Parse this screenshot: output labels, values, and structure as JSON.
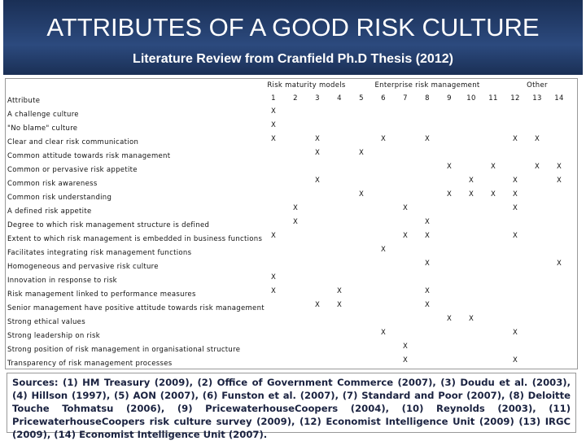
{
  "header": {
    "title": "ATTRIBUTES OF A GOOD RISK CULTURE",
    "subtitle": "Literature Review from Cranfield Ph.D Thesis (2012)"
  },
  "table": {
    "groups": [
      {
        "label": "Risk maturity models",
        "from": 1,
        "to": 4
      },
      {
        "label": "Enterprise risk management",
        "from": 5,
        "to": 11
      },
      {
        "label": "Other",
        "from": 12,
        "to": 14
      }
    ],
    "attribute_header": "Attribute",
    "columns": [
      "1",
      "2",
      "3",
      "4",
      "5",
      "6",
      "7",
      "8",
      "9",
      "10",
      "11",
      "12",
      "13",
      "14"
    ],
    "rows": [
      {
        "attribute": "A challenge culture",
        "cells": [
          "X",
          null,
          null,
          null,
          null,
          null,
          null,
          null,
          null,
          null,
          null,
          null,
          null,
          null
        ]
      },
      {
        "attribute": "\"No blame\" culture",
        "cells": [
          "X",
          null,
          null,
          null,
          null,
          null,
          null,
          null,
          null,
          null,
          null,
          null,
          null,
          null
        ]
      },
      {
        "attribute": "Clear and clear risk communication",
        "cells": [
          "X",
          null,
          "X",
          null,
          null,
          "X",
          null,
          "X",
          null,
          null,
          null,
          "X",
          "X",
          null
        ]
      },
      {
        "attribute": "Common attitude towards risk management",
        "cells": [
          null,
          null,
          "X",
          null,
          "X",
          null,
          null,
          null,
          null,
          null,
          null,
          null,
          null,
          null
        ]
      },
      {
        "attribute": "Common or pervasive risk appetite",
        "cells": [
          null,
          null,
          null,
          null,
          null,
          null,
          null,
          null,
          "X",
          null,
          "X",
          null,
          "X",
          "X"
        ]
      },
      {
        "attribute": "Common risk awareness",
        "cells": [
          null,
          null,
          "X",
          null,
          null,
          null,
          null,
          null,
          null,
          "X",
          null,
          "X",
          null,
          "X"
        ]
      },
      {
        "attribute": "Common risk understanding",
        "cells": [
          null,
          null,
          null,
          null,
          "X",
          null,
          null,
          null,
          "X",
          "X",
          "X",
          "X",
          null,
          null
        ]
      },
      {
        "attribute": "A defined risk appetite",
        "cells": [
          null,
          "X",
          null,
          null,
          null,
          null,
          "X",
          null,
          null,
          null,
          null,
          "X",
          null,
          null
        ]
      },
      {
        "attribute": "Degree to which risk management structure is defined",
        "cells": [
          null,
          "X",
          null,
          null,
          null,
          null,
          null,
          "X",
          null,
          null,
          null,
          null,
          null,
          null
        ]
      },
      {
        "attribute": "Extent to which risk management is embedded in business functions",
        "cells": [
          "X",
          null,
          null,
          null,
          null,
          null,
          "X",
          "X",
          null,
          null,
          null,
          "X",
          null,
          null
        ]
      },
      {
        "attribute": "Facilitates integrating risk management functions",
        "cells": [
          null,
          null,
          null,
          null,
          null,
          "X",
          null,
          null,
          null,
          null,
          null,
          null,
          null,
          null
        ]
      },
      {
        "attribute": "Homogeneous and pervasive risk culture",
        "cells": [
          null,
          null,
          null,
          null,
          null,
          null,
          null,
          "X",
          null,
          null,
          null,
          null,
          null,
          "X"
        ]
      },
      {
        "attribute": "Innovation in response to risk",
        "cells": [
          "X",
          null,
          null,
          null,
          null,
          null,
          null,
          null,
          null,
          null,
          null,
          null,
          null,
          null
        ]
      },
      {
        "attribute": "Risk management linked to performance measures",
        "cells": [
          "X",
          null,
          null,
          "X",
          null,
          null,
          null,
          "X",
          null,
          null,
          null,
          null,
          null,
          null
        ]
      },
      {
        "attribute": "Senior management have positive attitude towards risk management",
        "cells": [
          null,
          null,
          "X",
          "X",
          null,
          null,
          null,
          "X",
          null,
          null,
          null,
          null,
          null,
          null
        ]
      },
      {
        "attribute": "Strong ethical values",
        "cells": [
          null,
          null,
          null,
          null,
          null,
          null,
          null,
          null,
          "X",
          "X",
          null,
          null,
          null,
          null
        ]
      },
      {
        "attribute": "Strong leadership on risk",
        "cells": [
          null,
          null,
          null,
          null,
          null,
          "X",
          null,
          null,
          null,
          null,
          null,
          "X",
          null,
          null
        ]
      },
      {
        "attribute": "Strong position of risk management in organisational structure",
        "cells": [
          null,
          null,
          null,
          null,
          null,
          null,
          "X",
          null,
          null,
          null,
          null,
          null,
          null,
          null
        ]
      },
      {
        "attribute": "Transparency of risk management processes",
        "cells": [
          null,
          null,
          null,
          null,
          null,
          null,
          "X",
          null,
          null,
          null,
          null,
          "X",
          null,
          null
        ]
      }
    ]
  },
  "sources": "Sources: (1) HM Treasury (2009), (2) Office of Government Commerce (2007), (3) Doudu et al. (2003), (4) Hillson (1997), (5) AON (2007), (6) Funston et al. (2007), (7) Standard and Poor (2007), (8) Deloitte Touche Tohmatsu (2006), (9) PricewaterhouseCoopers (2004), (10) Reynolds (2003), (11) PricewaterhouseCoopers risk culture survey (2009), (12) Economist Intelligence Unit (2009) (13) IRGC (2009), (14) Economist Intelligence Unit (2007)."
}
